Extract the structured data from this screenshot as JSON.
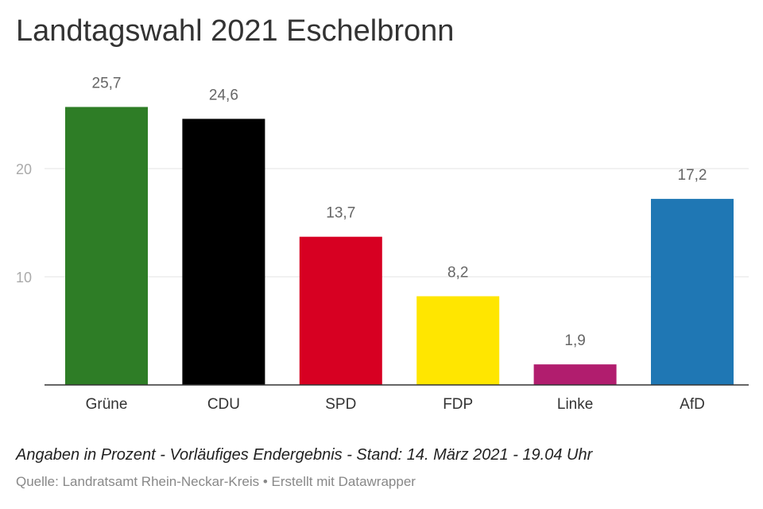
{
  "title": "Landtagswahl 2021 Eschelbronn",
  "note": "Angaben in Prozent - Vorläufiges Endergebnis - Stand: 14. März 2021 - 19.04 Uhr",
  "footer": {
    "source": "Quelle: Landratsamt Rhein-Neckar-Kreis",
    "separator": "•",
    "credit": "Erstellt mit Datawrapper"
  },
  "chart_data": {
    "type": "bar",
    "title": "Landtagswahl 2021 Eschelbronn",
    "xlabel": "",
    "ylabel": "",
    "categories": [
      "Grüne",
      "CDU",
      "SPD",
      "FDP",
      "Linke",
      "AfD"
    ],
    "values": [
      25.7,
      24.6,
      13.7,
      8.2,
      1.9,
      17.2
    ],
    "value_labels": [
      "25,7",
      "24,6",
      "13,7",
      "8,2",
      "1,9",
      "17,2"
    ],
    "colors": [
      "#2e7d26",
      "#000000",
      "#d70022",
      "#ffe600",
      "#b11d6e",
      "#1f77b4"
    ],
    "yticks": [
      10,
      20
    ],
    "ylim": [
      0,
      28.8
    ],
    "grid": true,
    "legend": "none"
  }
}
